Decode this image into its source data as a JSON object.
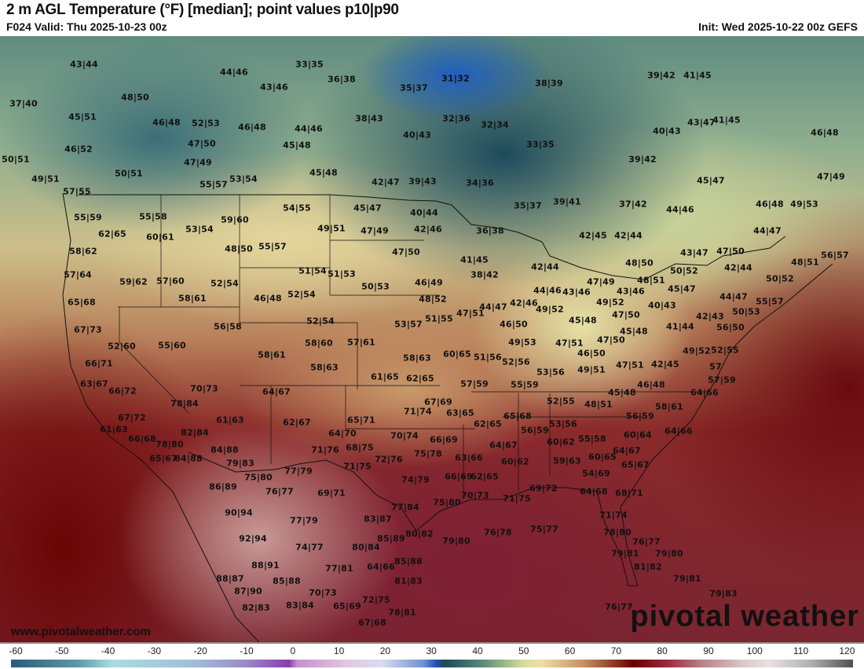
{
  "header": {
    "title": "2 m AGL Temperature (°F) [median]; point values p10|p90",
    "valid": "F024 Valid: Thu 2025-10-23 00z",
    "init": "Init: Wed 2025-10-22 00z GEFS"
  },
  "watermark": {
    "site": "www.pivotalweather.com",
    "logo": "pivotal weather"
  },
  "colorbar": {
    "ticks": [
      "-60",
      "-50",
      "-40",
      "-30",
      "-20",
      "-10",
      "0",
      "10",
      "20",
      "30",
      "40",
      "50",
      "60",
      "70",
      "80",
      "90",
      "100",
      "110",
      "120"
    ]
  },
  "point_values": [
    "43|44",
    "44|46",
    "33|35",
    "36|38",
    "43|46",
    "35|37",
    "31|32",
    "38|39",
    "39|42",
    "41|45",
    "37|40",
    "48|50",
    "45|51",
    "46|48",
    "52|53",
    "46|48",
    "44|46",
    "38|43",
    "32|36",
    "32|34",
    "40|43",
    "40|43",
    "43|47",
    "41|45",
    "46|48",
    "47|50",
    "45|48",
    "33|35",
    "46|52",
    "50|51",
    "47|49",
    "45|48",
    "39|42",
    "50|51",
    "53|54",
    "55|57",
    "42|47",
    "39|43",
    "34|36",
    "45|47",
    "47|49",
    "49|51",
    "57|55",
    "37|42",
    "44|46",
    "35|37",
    "39|41",
    "46|48",
    "49|53",
    "55|59",
    "55|58",
    "54|55",
    "45|47",
    "40|44",
    "59|60",
    "53|54",
    "62|65",
    "60|61",
    "49|51",
    "47|49",
    "42|46",
    "36|38",
    "42|45",
    "42|44",
    "44|47",
    "58|62",
    "48|50",
    "55|57",
    "47|50",
    "41|45",
    "48|50",
    "43|47",
    "47|50",
    "56|57",
    "48|51",
    "42|44",
    "57|64",
    "51|54",
    "51|53",
    "38|42",
    "42|44",
    "50|52",
    "50|52",
    "59|62",
    "57|60",
    "52|54",
    "50|53",
    "46|49",
    "47|49",
    "48|51",
    "44|46",
    "43|46",
    "45|47",
    "58|61",
    "46|48",
    "52|54",
    "48|52",
    "65|68",
    "49|52",
    "43|46",
    "44|47",
    "55|57",
    "40|43",
    "44|47",
    "42|46",
    "47|51",
    "49|52",
    "47|50",
    "50|53",
    "42|43",
    "56|58",
    "52|54",
    "53|57",
    "51|55",
    "46|50",
    "45|48",
    "41|44",
    "45|48",
    "67|73",
    "56|50",
    "52|55",
    "49|52",
    "57",
    "52|60",
    "55|60",
    "58|60",
    "57|61",
    "49|53",
    "47|51",
    "47|50",
    "58|61",
    "58|63",
    "58|63",
    "60|65",
    "51|56",
    "52|56",
    "46|50",
    "49|51",
    "47|51",
    "42|45",
    "66|71",
    "61|65",
    "62|65",
    "53|56",
    "46|48",
    "57|59",
    "64|66",
    "63|67",
    "57|59",
    "55|59",
    "45|48",
    "70|73",
    "64|67",
    "66|72",
    "78|84",
    "52|55",
    "48|51",
    "58|61",
    "67|69",
    "71|74",
    "61|63",
    "62|67",
    "65|71",
    "63|65",
    "65|68",
    "56|59",
    "53|56",
    "67|72",
    "82|84",
    "64|70",
    "62|65",
    "56|59",
    "64|66",
    "61|63",
    "70|74",
    "66|69",
    "60|64",
    "66|68",
    "78|80",
    "84|88",
    "71|76",
    "68|75",
    "60|62",
    "55|58",
    "75|78",
    "72|76",
    "64|67",
    "64|67",
    "65|67",
    "84|88",
    "79|83",
    "71|75",
    "63|66",
    "60|62",
    "59|63",
    "60|65",
    "65|67",
    "75|80",
    "77|79",
    "74|79",
    "66|69",
    "62|65",
    "54|69",
    "86|89",
    "76|77",
    "69|71",
    "70|73",
    "71|75",
    "69|72",
    "64|68",
    "68|71",
    "75|80",
    "90|94",
    "77|84",
    "71|74",
    "83|87",
    "77|79",
    "80|82",
    "85|89",
    "76|78",
    "75|77",
    "78|80",
    "79|80",
    "92|94",
    "74|77",
    "80|84",
    "76|77",
    "79|81",
    "79|80",
    "88|91",
    "85|88",
    "77|81",
    "64|66",
    "81|82",
    "85|88",
    "88|87",
    "81|83",
    "79|81",
    "87|90",
    "70|73",
    "72|75",
    "79|83",
    "82|83",
    "83|84",
    "65|69",
    "78|81",
    "76|77",
    "67|68"
  ]
}
